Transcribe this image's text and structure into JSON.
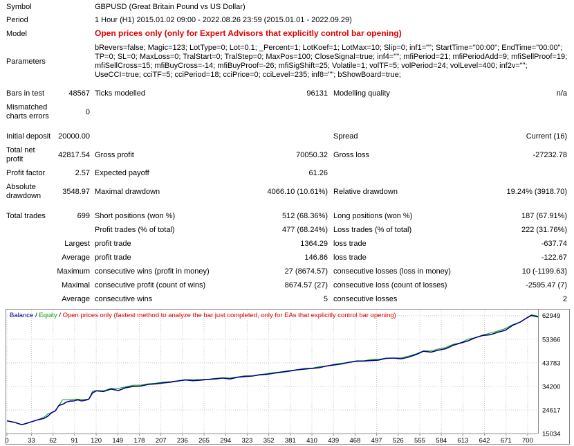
{
  "report": {
    "symbol_label": "Symbol",
    "symbol_value": "GBPUSD (Great Britain Pound vs US Dollar)",
    "period_label": "Period",
    "period_value": "1 Hour (H1) 2015.01.02 09:00 - 2022.08.26 23:59 (2015.01.01 - 2022.09.29)",
    "model_label": "Model",
    "model_value": "Open prices only (only for Expert Advisors that explicitly control bar opening)",
    "parameters_label": "Parameters",
    "parameters_value": "bRevers=false; Magic=123; LotType=0; Lot=0.1; _Percent=1; LotKoef=1; LotMax=10; Slip=0; inf1=\"\"; StartTime=\"00:00\"; EndTime=\"00:00\"; TP=0; SL=0; MaxLoss=0; TralStart=0; TralStep=0; MaxPos=100; CloseSignal=true; inf4=\"\"; mfiPeriod=21; mfiPeriodAdd=9; mfiSellProof=19; mfiSellCross=15; mfiBuyCross=-14; mfiBuyProof=-26; mfiSigShift=25; Volatile=1; volTF=5; volPeriod=24; volLevel=400; inf2v=\"\"; UseCCI=true; cciTF=5; cciPeriod=18; cciPrice=0; cciLevel=235; inf8=\"\"; bShowBoard=true;",
    "bars_label": "Bars in test",
    "bars_value": "48567",
    "ticks_label": "Ticks modelled",
    "ticks_value": "96131",
    "quality_label": "Modelling quality",
    "quality_value": "n/a",
    "mismatch_label_1": "Mismatched",
    "mismatch_label_2": "charts errors",
    "mismatch_value": "0",
    "deposit_label": "Initial deposit",
    "deposit_value": "20000.00",
    "spread_label": "Spread",
    "spread_value": "Current (16)",
    "netprofit_label_1": "Total net",
    "netprofit_label_2": "profit",
    "netprofit_value": "42817.54",
    "grossprofit_label": "Gross profit",
    "grossprofit_value": "70050.32",
    "grossloss_label": "Gross loss",
    "grossloss_value": "-27232.78",
    "pf_label": "Profit factor",
    "pf_value": "2.57",
    "payoff_label": "Expected payoff",
    "payoff_value": "61.26",
    "absdd_label_1": "Absolute",
    "absdd_label_2": "drawdown",
    "absdd_value": "3548.97",
    "maxdd_label": "Maximal drawdown",
    "maxdd_value": "4066.10 (10.61%)",
    "reldd_label": "Relative drawdown",
    "reldd_value": "19.24% (3918.70)",
    "trades_label": "Total trades",
    "trades_value": "699",
    "short_label": "Short positions (won %)",
    "short_value": "512 (68.36%)",
    "long_label": "Long positions (won %)",
    "long_value": "187 (67.91%)",
    "ptrades_label": "Profit trades (% of total)",
    "ptrades_value": "477 (68.24%)",
    "ltrades_label": "Loss trades (% of total)",
    "ltrades_value": "222 (31.76%)",
    "largest_label": "Largest",
    "avg_label": "Average",
    "max_label": "Maximum",
    "maximal_label": "Maximal",
    "avg2_label": "Average",
    "profit_trade_label": "profit trade",
    "largest_profit_value": "1364.29",
    "loss_trade_label": "loss trade",
    "largest_loss_value": "-637.74",
    "avg_profit_label": "profit trade",
    "avg_profit_value": "146.86",
    "avg_loss_label": "loss trade",
    "avg_loss_value": "-122.67",
    "cwins_money_label": "consecutive wins (profit in money)",
    "cwins_money_value": "27 (8674.57)",
    "closs_money_label": "consecutive losses (loss in money)",
    "closs_money_value": "10 (-1199.63)",
    "cprofit_label": "consecutive profit (count of wins)",
    "cprofit_value": "8674.57 (27)",
    "closs_count_label": "consecutive loss (count of losses)",
    "closs_count_value": "-2595.47 (7)",
    "cwins_label": "consecutive wins",
    "cwins_value": "5",
    "closses_label": "consecutive losses",
    "closses_value": "2"
  },
  "chart_data": {
    "type": "line",
    "legend": {
      "balance": "Balance",
      "sep1": " / ",
      "equity": "Equity",
      "sep2": " / ",
      "note": "Open prices only (fastest method to analyze the bar just completed, only for EAs that explicitly control bar opening)"
    },
    "colors": {
      "balance": "#00008b",
      "equity": "#00a000",
      "note": "#e00000"
    },
    "x_ticks": [
      0,
      33,
      62,
      91,
      120,
      149,
      178,
      207,
      236,
      265,
      294,
      323,
      352,
      381,
      410,
      439,
      468,
      497,
      526,
      555,
      584,
      613,
      642,
      671,
      700
    ],
    "y_ticks": [
      15034,
      24617,
      34200,
      43783,
      53366,
      62949
    ],
    "xlim": [
      0,
      714
    ],
    "ylim": [
      15034,
      65400
    ],
    "series": [
      {
        "name": "Balance",
        "x": [
          0,
          10,
          20,
          30,
          40,
          50,
          55,
          60,
          65,
          70,
          75,
          80,
          85,
          90,
          95,
          100,
          105,
          110,
          115,
          120,
          130,
          140,
          150,
          160,
          170,
          180,
          190,
          200,
          210,
          220,
          230,
          240,
          250,
          260,
          270,
          280,
          290,
          300,
          310,
          320,
          330,
          340,
          350,
          360,
          370,
          380,
          390,
          400,
          410,
          420,
          430,
          440,
          450,
          460,
          470,
          480,
          490,
          500,
          510,
          520,
          530,
          540,
          550,
          560,
          570,
          580,
          590,
          600,
          610,
          620,
          630,
          640,
          650,
          660,
          670,
          680,
          690,
          700,
          705,
          710,
          714
        ],
        "y": [
          20200,
          19600,
          18600,
          19500,
          20500,
          21200,
          22100,
          23500,
          24200,
          26500,
          26900,
          27800,
          28200,
          28300,
          28700,
          28300,
          28500,
          29000,
          31500,
          32400,
          32100,
          33100,
          32500,
          33700,
          34200,
          34300,
          35000,
          35200,
          35600,
          35900,
          36400,
          36800,
          36500,
          36700,
          37000,
          37200,
          37600,
          37200,
          37900,
          38200,
          38400,
          38900,
          39100,
          39600,
          40000,
          40400,
          40900,
          41200,
          41500,
          41800,
          42500,
          42900,
          43300,
          44000,
          44400,
          44500,
          44700,
          44900,
          45600,
          45700,
          45400,
          46100,
          47100,
          48500,
          48100,
          48900,
          49500,
          50900,
          51800,
          52700,
          54000,
          54900,
          55200,
          56200,
          57000,
          59000,
          60300,
          62200,
          63000,
          62700,
          62400
        ]
      },
      {
        "name": "Equity",
        "x": [
          0,
          10,
          20,
          30,
          40,
          50,
          55,
          60,
          65,
          70,
          75,
          80,
          85,
          90,
          95,
          100,
          105,
          110,
          115,
          120,
          130,
          140,
          150,
          160,
          170,
          180,
          190,
          200,
          210,
          220,
          230,
          240,
          250,
          260,
          270,
          280,
          290,
          300,
          310,
          320,
          330,
          340,
          350,
          360,
          370,
          380,
          390,
          400,
          410,
          420,
          430,
          440,
          450,
          460,
          470,
          480,
          490,
          500,
          510,
          520,
          530,
          540,
          550,
          560,
          570,
          580,
          590,
          600,
          610,
          620,
          630,
          640,
          650,
          660,
          670,
          680,
          690,
          700,
          705,
          710,
          714
        ],
        "y": [
          20200,
          19600,
          18600,
          19500,
          20500,
          21700,
          23000,
          23500,
          24200,
          26500,
          28800,
          28800,
          28800,
          29000,
          29000,
          28900,
          28900,
          29000,
          32200,
          32500,
          32400,
          33400,
          33400,
          34000,
          34700,
          34700,
          35200,
          35500,
          35900,
          36100,
          36500,
          36900,
          36900,
          37000,
          37100,
          37500,
          37600,
          37600,
          38000,
          38500,
          38500,
          39000,
          39400,
          39800,
          40200,
          40600,
          41000,
          41500,
          41600,
          42200,
          42500,
          43200,
          43600,
          44000,
          44600,
          44600,
          45100,
          45200,
          45700,
          45700,
          45800,
          46500,
          47400,
          48600,
          48600,
          49400,
          50000,
          51300,
          51900,
          53400,
          54000,
          55100,
          55900,
          56700,
          57700,
          59300,
          60300,
          62300,
          63300,
          63000,
          62700
        ]
      }
    ]
  }
}
